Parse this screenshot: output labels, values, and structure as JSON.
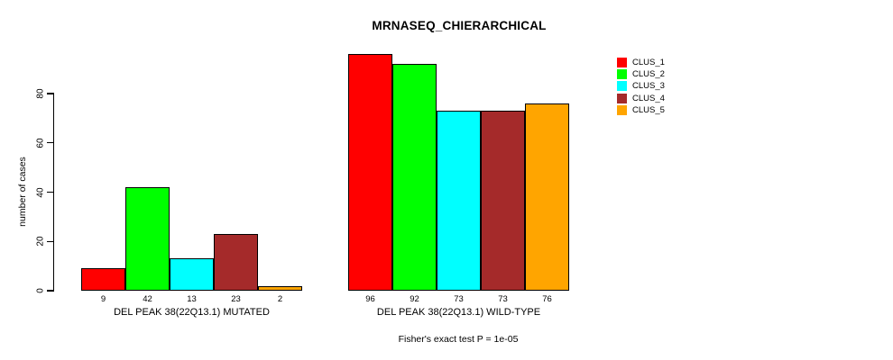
{
  "chart_data": {
    "type": "bar",
    "title": "MRNASEQ_CHIERARCHICAL",
    "ylabel": "number of cases",
    "xlabel": "",
    "categories": [
      "DEL PEAK 38(22Q13.1) MUTATED",
      "DEL PEAK 38(22Q13.1) WILD-TYPE"
    ],
    "series": [
      {
        "name": "CLUS_1",
        "color": "#FF0000",
        "values": [
          9,
          96
        ]
      },
      {
        "name": "CLUS_2",
        "color": "#00FF00",
        "values": [
          42,
          92
        ]
      },
      {
        "name": "CLUS_3",
        "color": "#00FFFF",
        "values": [
          13,
          73
        ]
      },
      {
        "name": "CLUS_4",
        "color": "#A52A2A",
        "values": [
          23,
          73
        ]
      },
      {
        "name": "CLUS_5",
        "color": "#FFA500",
        "values": [
          2,
          76
        ]
      }
    ],
    "yticks": [
      0,
      20,
      40,
      60,
      80
    ],
    "ylim": [
      0,
      97
    ],
    "bar_value_labels": [
      [
        9,
        42,
        13,
        23,
        2
      ],
      [
        96,
        92,
        73,
        73,
        76
      ]
    ],
    "annotation": "Fisher's exact test P = 1e-05",
    "legend_position": "right",
    "grid": false,
    "bar_border_color": "#000000",
    "axis_color": "#000000",
    "background_color": "#FFFFFF"
  }
}
